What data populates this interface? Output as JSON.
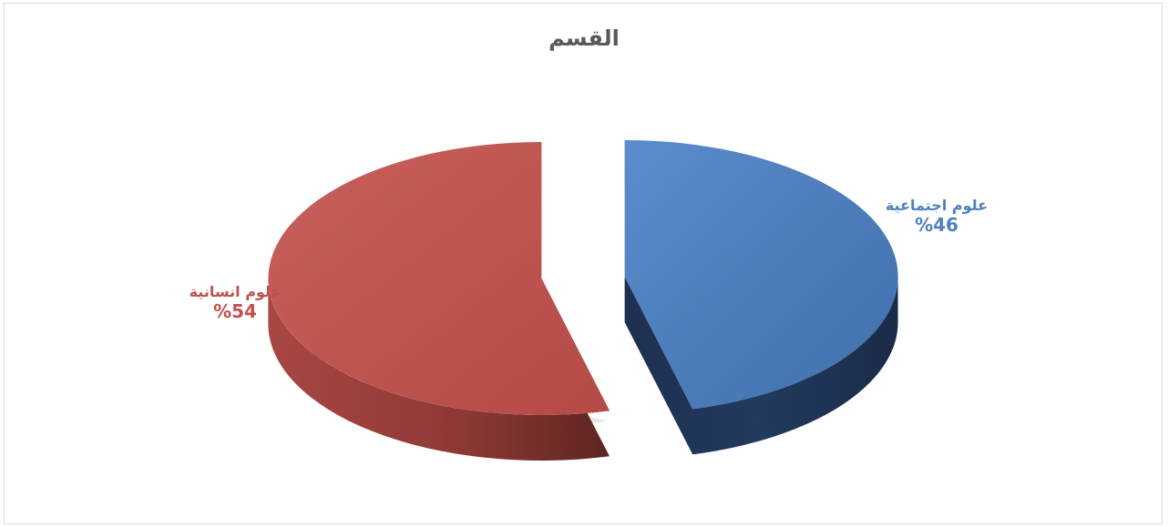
{
  "chart_data": {
    "type": "pie",
    "title": "القسم",
    "categories": [
      "علوم اجتماعية",
      "علوم انسانية"
    ],
    "values": [
      46,
      54
    ],
    "data_labels": [
      "%46",
      "%54"
    ],
    "colors": [
      "#4f81bd",
      "#c0504d"
    ],
    "exploded": true,
    "style": "3d"
  }
}
